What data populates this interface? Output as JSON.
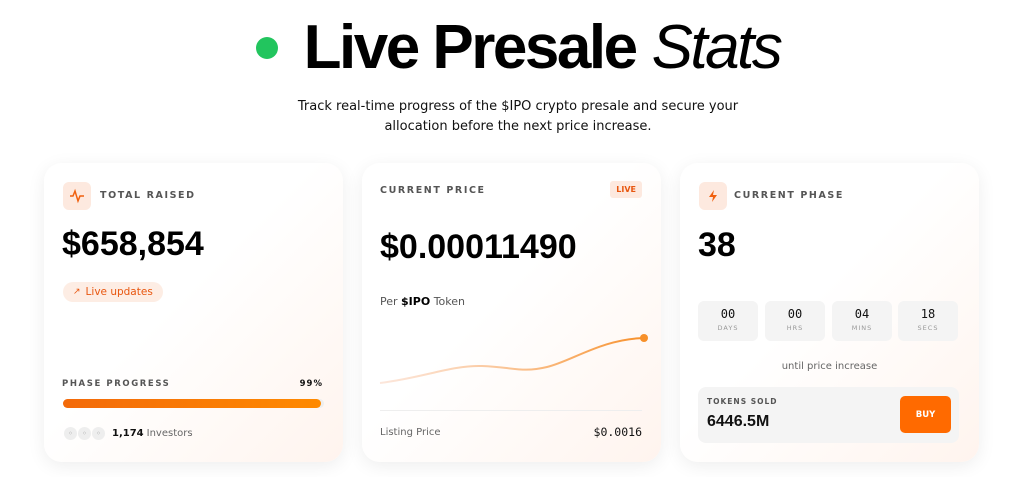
{
  "hero": {
    "title_bold": "Live Presale",
    "title_italic": "Stats",
    "subtitle_line1": "Track real-time progress of the $IPO crypto presale and secure your",
    "subtitle_line2": "allocation before the next price increase.",
    "live_dot_color": "#22c55e"
  },
  "total_raised": {
    "label": "TOTAL RAISED",
    "icon": "activity-icon",
    "value": "$658,854",
    "live_pill": "Live updates",
    "progress_label": "PHASE PROGRESS",
    "progress_text": "99%",
    "progress_percent": 99,
    "investors_count": "1,174",
    "investors_label": "Investors"
  },
  "current_price": {
    "label": "CURRENT PRICE",
    "badge": "LIVE",
    "value": "$0.00011490",
    "per_prefix": "Per",
    "per_token": "$IPO",
    "per_suffix": "Token",
    "listing_label": "Listing Price",
    "listing_value": "$0.0016"
  },
  "current_phase": {
    "label": "CURRENT PHASE",
    "icon": "lightning-icon",
    "value": "38",
    "countdown": [
      {
        "value": "00",
        "unit": "DAYS"
      },
      {
        "value": "00",
        "unit": "HRS"
      },
      {
        "value": "04",
        "unit": "MINS"
      },
      {
        "value": "18",
        "unit": "SECS"
      }
    ],
    "until_text": "until price increase",
    "tokens_sold_label": "TOKENS SOLD",
    "tokens_sold_value": "6446.5M",
    "buy_label": "BUY"
  },
  "colors": {
    "accent": "#ff6a00",
    "accent_light": "#fde9df"
  }
}
